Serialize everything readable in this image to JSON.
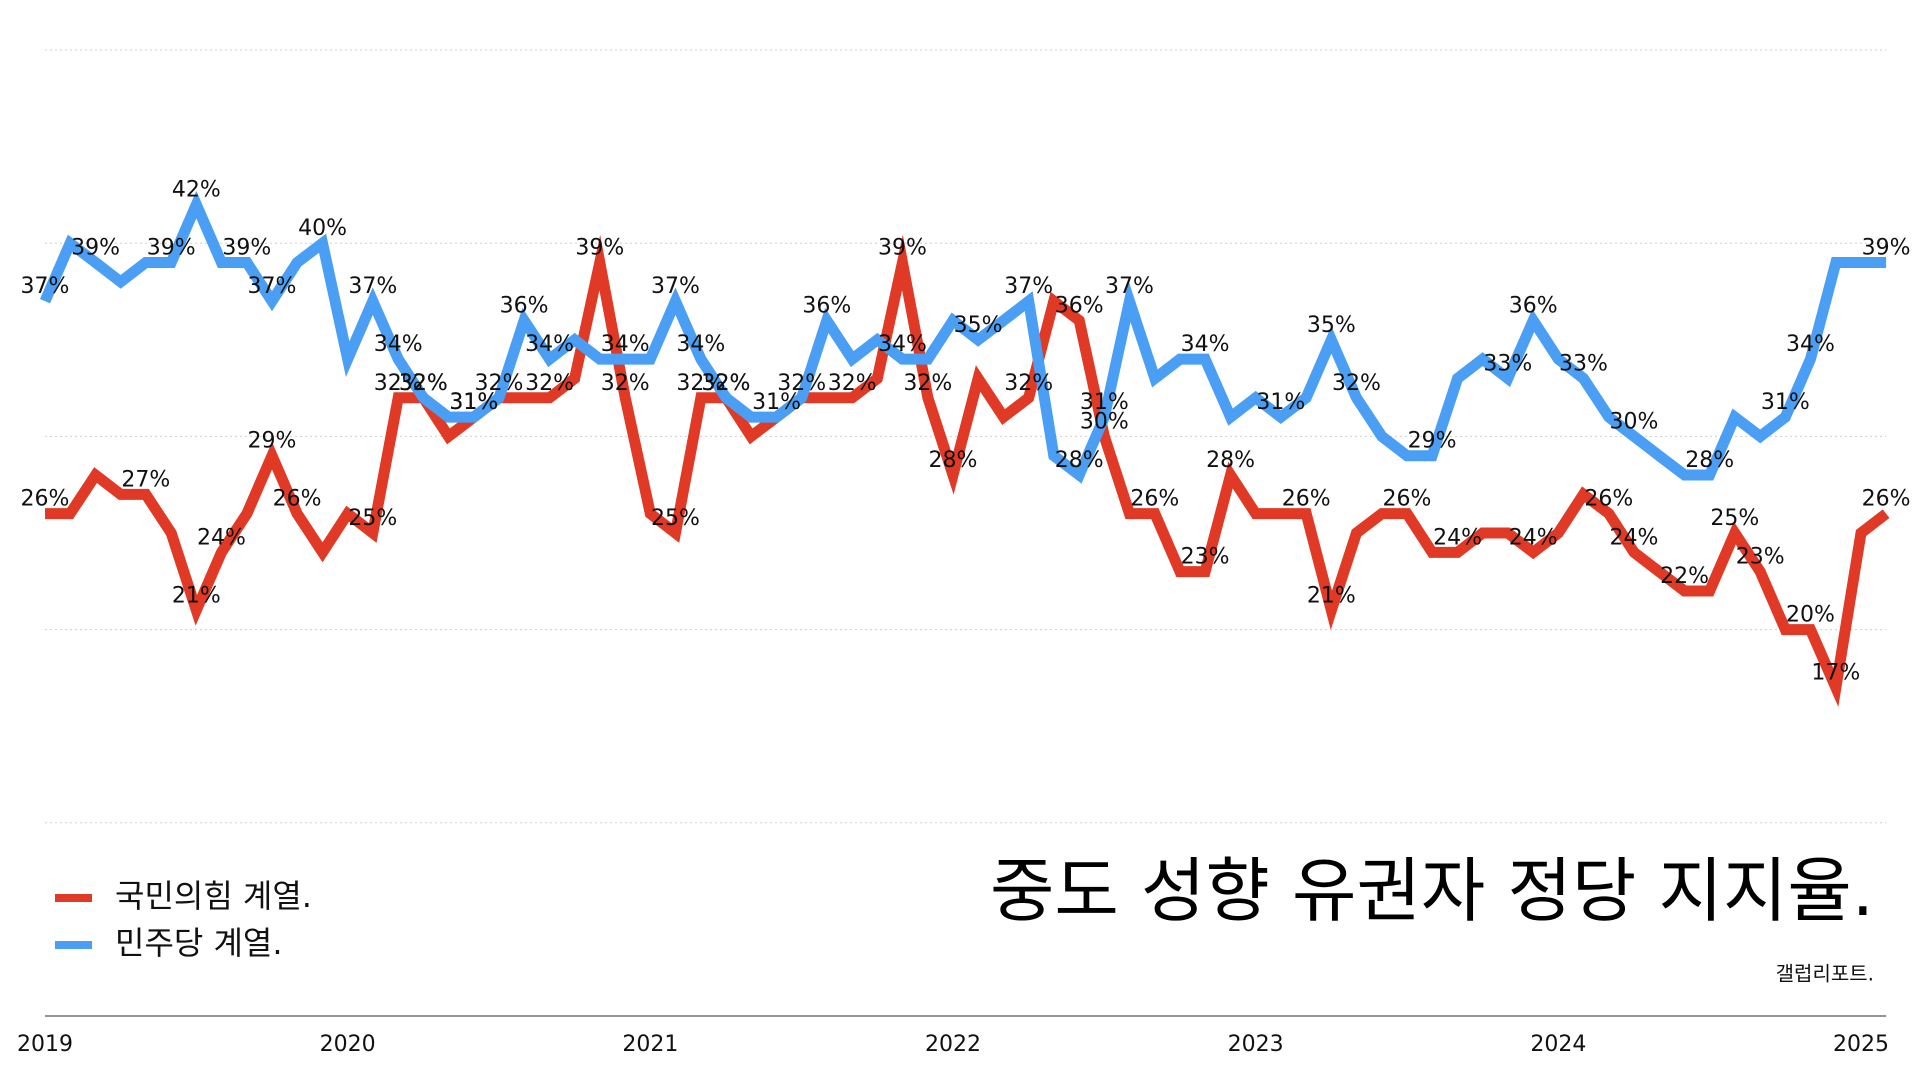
{
  "chart_data": {
    "type": "line",
    "title": "중도 성향 유권자 정당 지지율.",
    "source": "갤럽리포트.",
    "x": [
      2019,
      2019.083,
      2019.167,
      2019.25,
      2019.333,
      2019.417,
      2019.5,
      2019.583,
      2019.667,
      2019.75,
      2019.833,
      2019.917,
      2020,
      2020.083,
      2020.167,
      2020.25,
      2020.333,
      2020.417,
      2020.5,
      2020.583,
      2020.667,
      2020.75,
      2020.833,
      2020.917,
      2021,
      2021.083,
      2021.167,
      2021.25,
      2021.333,
      2021.417,
      2021.5,
      2021.583,
      2021.667,
      2021.75,
      2021.833,
      2021.917,
      2022,
      2022.083,
      2022.167,
      2022.25,
      2022.333,
      2022.417,
      2022.5,
      2022.583,
      2022.667,
      2022.75,
      2022.833,
      2022.917,
      2023,
      2023.083,
      2023.167,
      2023.25,
      2023.333,
      2023.417,
      2023.5,
      2023.583,
      2023.667,
      2023.75,
      2023.833,
      2023.917,
      2024,
      2024.083,
      2024.167,
      2024.25,
      2024.333,
      2024.417,
      2024.5,
      2024.583,
      2024.667,
      2024.75,
      2024.833,
      2024.917,
      2025,
      2025.083
    ],
    "xlim": [
      2019,
      2025
    ],
    "xticks": [
      2019,
      2020,
      2021,
      2022,
      2023,
      2024,
      2025
    ],
    "ylim": [
      0,
      50
    ],
    "yticks": [
      10,
      20,
      30,
      40,
      50
    ],
    "grid": true,
    "legend": "bottom-left",
    "series": [
      {
        "name": "국민의힘 계열.",
        "color": "#e03a26",
        "values": [
          26,
          26,
          28,
          27,
          27,
          25,
          21,
          24,
          26,
          29,
          26,
          24,
          26,
          25,
          32,
          32,
          30,
          31,
          32,
          32,
          32,
          33,
          39,
          32,
          26,
          25,
          32,
          32,
          30,
          31,
          32,
          32,
          32,
          33,
          39,
          32,
          28,
          33,
          31,
          32,
          37,
          36,
          30,
          26,
          26,
          23,
          23,
          28,
          26,
          26,
          26,
          21,
          25,
          26,
          26,
          24,
          24,
          25,
          25,
          24,
          25,
          27,
          26,
          24,
          23,
          22,
          22,
          25,
          23,
          20,
          20,
          17,
          25,
          26
        ],
        "value_labels": [
          "26%",
          null,
          null,
          null,
          "27%",
          null,
          "21%",
          "24%",
          null,
          "29%",
          "26%",
          null,
          null,
          "25%",
          "32%",
          "32%",
          null,
          "31%",
          "32%",
          null,
          "32%",
          null,
          "39%",
          "32%",
          null,
          "25%",
          "32%",
          "32%",
          null,
          null,
          "32%",
          null,
          "32%",
          null,
          "39%",
          "32%",
          "28%",
          null,
          null,
          "32%",
          null,
          "36%",
          "30%",
          null,
          "26%",
          null,
          "23%",
          "28%",
          null,
          null,
          "26%",
          "21%",
          null,
          null,
          "26%",
          null,
          "24%",
          null,
          null,
          "24%",
          null,
          null,
          "26%",
          "24%",
          null,
          "22%",
          null,
          "25%",
          "23%",
          null,
          "20%",
          "17%",
          null,
          "26%"
        ]
      },
      {
        "name": "민주당 계열.",
        "color": "#4a9ff5",
        "values": [
          37,
          40,
          39,
          38,
          39,
          39,
          42,
          39,
          39,
          37,
          39,
          40,
          34,
          37,
          34,
          32,
          31,
          31,
          32,
          36,
          34,
          35,
          34,
          34,
          34,
          37,
          34,
          32,
          31,
          31,
          32,
          36,
          34,
          35,
          34,
          34,
          36,
          35,
          36,
          37,
          29,
          28,
          31,
          37,
          33,
          34,
          34,
          31,
          32,
          31,
          32,
          35,
          32,
          30,
          29,
          29,
          33,
          34,
          33,
          36,
          34,
          33,
          31,
          30,
          29,
          28,
          28,
          31,
          30,
          31,
          34,
          39,
          39,
          39
        ],
        "value_labels": [
          "37%",
          null,
          "39%",
          null,
          null,
          "39%",
          "42%",
          null,
          "39%",
          "37%",
          null,
          "40%",
          null,
          "37%",
          "34%",
          "32%",
          null,
          "31%",
          null,
          "36%",
          "34%",
          null,
          null,
          "34%",
          null,
          "37%",
          "34%",
          "32%",
          null,
          "31%",
          null,
          "36%",
          null,
          null,
          "34%",
          null,
          null,
          "35%",
          null,
          "37%",
          null,
          "28%",
          "31%",
          "37%",
          null,
          null,
          "34%",
          null,
          null,
          "31%",
          null,
          "35%",
          "32%",
          null,
          null,
          "29%",
          null,
          null,
          "33%",
          "36%",
          null,
          "33%",
          null,
          "30%",
          null,
          null,
          "28%",
          null,
          null,
          "31%",
          "34%",
          null,
          null,
          "39%"
        ]
      }
    ]
  }
}
